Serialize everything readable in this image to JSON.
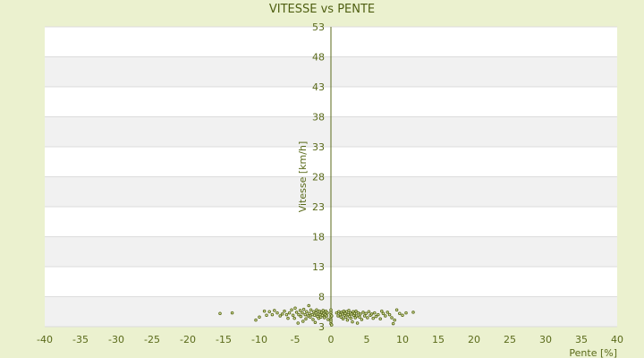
{
  "chart_data": {
    "type": "scatter",
    "title": "VITESSE vs PENTE",
    "xlabel": "Pente [%]",
    "ylabel": "Vitesse [km/h]",
    "xlim": [
      -40,
      40
    ],
    "ylim": [
      3,
      53
    ],
    "xticks": [
      -40,
      -35,
      -30,
      -25,
      -20,
      -15,
      -10,
      -5,
      0,
      5,
      10,
      15,
      20,
      25,
      30,
      35,
      40
    ],
    "yticks": [
      3,
      8,
      13,
      18,
      23,
      28,
      33,
      38,
      43,
      48,
      53
    ],
    "grid": "horizontal bands",
    "colors": {
      "page_bg": "#ebf1cf",
      "plot_bg": "#ffffff",
      "band_alt": "#f1f1f1",
      "grid": "#dcdcdc",
      "axis": "#5a6a1a",
      "point_fill": "#e8f0b0",
      "point_stroke": "#5a6a1a"
    },
    "series": [
      {
        "points": [
          [
            -15.5,
            5.2
          ],
          [
            -13.8,
            5.3
          ],
          [
            -10.5,
            4.1
          ],
          [
            -10.0,
            4.6
          ],
          [
            -9.3,
            5.6
          ],
          [
            -9.0,
            4.9
          ],
          [
            -8.6,
            5.5
          ],
          [
            -8.2,
            5.0
          ],
          [
            -7.9,
            5.7
          ],
          [
            -7.5,
            5.3
          ],
          [
            -7.1,
            4.8
          ],
          [
            -6.8,
            5.1
          ],
          [
            -6.5,
            5.6
          ],
          [
            -6.2,
            5.0
          ],
          [
            -6.0,
            4.4
          ],
          [
            -5.8,
            5.3
          ],
          [
            -5.5,
            5.8
          ],
          [
            -5.3,
            4.9
          ],
          [
            -5.1,
            4.4
          ],
          [
            -5.0,
            6.1
          ],
          [
            -4.8,
            5.4
          ],
          [
            -4.6,
            3.6
          ],
          [
            -4.5,
            5.0
          ],
          [
            -4.3,
            5.7
          ],
          [
            -4.2,
            4.7
          ],
          [
            -4.0,
            5.3
          ],
          [
            -3.9,
            3.9
          ],
          [
            -3.8,
            5.9
          ],
          [
            -3.6,
            5.0
          ],
          [
            -3.5,
            4.3
          ],
          [
            -3.4,
            5.5
          ],
          [
            -3.2,
            4.8
          ],
          [
            -3.1,
            6.5
          ],
          [
            -3.0,
            5.2
          ],
          [
            -2.9,
            4.6
          ],
          [
            -2.8,
            5.8
          ],
          [
            -2.6,
            5.0
          ],
          [
            -2.5,
            4.2
          ],
          [
            -2.4,
            5.5
          ],
          [
            -2.3,
            4.9
          ],
          [
            -2.2,
            3.7
          ],
          [
            -2.1,
            5.3
          ],
          [
            -2.0,
            5.8
          ],
          [
            -1.9,
            4.7
          ],
          [
            -1.8,
            5.1
          ],
          [
            -1.7,
            4.4
          ],
          [
            -1.6,
            5.6
          ],
          [
            -1.5,
            5.0
          ],
          [
            -1.4,
            4.6
          ],
          [
            -1.3,
            5.4
          ],
          [
            -1.2,
            4.9
          ],
          [
            -1.1,
            5.7
          ],
          [
            -1.0,
            5.2
          ],
          [
            -0.9,
            4.5
          ],
          [
            -0.8,
            5.0
          ],
          [
            -0.7,
            5.6
          ],
          [
            -0.6,
            4.8
          ],
          [
            -0.5,
            5.3
          ],
          [
            -0.4,
            4.2
          ],
          [
            0.0,
            5.4
          ],
          [
            0.0,
            5.0
          ],
          [
            0.0,
            4.6
          ],
          [
            0.0,
            4.2
          ],
          [
            0.0,
            3.9
          ],
          [
            0.0,
            3.5
          ],
          [
            0.0,
            5.8
          ],
          [
            0.1,
            4.8
          ],
          [
            0.1,
            3.3
          ],
          [
            0.8,
            5.3
          ],
          [
            1.0,
            4.8
          ],
          [
            1.1,
            5.5
          ],
          [
            1.3,
            5.0
          ],
          [
            1.4,
            4.6
          ],
          [
            1.5,
            5.4
          ],
          [
            1.6,
            5.1
          ],
          [
            1.7,
            4.3
          ],
          [
            1.8,
            5.6
          ],
          [
            1.9,
            4.9
          ],
          [
            2.0,
            5.2
          ],
          [
            2.1,
            4.6
          ],
          [
            2.2,
            5.5
          ],
          [
            2.3,
            4.1
          ],
          [
            2.4,
            5.0
          ],
          [
            2.5,
            5.7
          ],
          [
            2.6,
            4.7
          ],
          [
            2.7,
            5.3
          ],
          [
            2.8,
            4.4
          ],
          [
            2.9,
            5.1
          ],
          [
            3.0,
            3.8
          ],
          [
            3.1,
            5.5
          ],
          [
            3.2,
            4.9
          ],
          [
            3.3,
            5.2
          ],
          [
            3.4,
            4.5
          ],
          [
            3.5,
            5.6
          ],
          [
            3.6,
            4.8
          ],
          [
            3.7,
            3.6
          ],
          [
            3.8,
            5.3
          ],
          [
            4.0,
            4.6
          ],
          [
            4.1,
            5.1
          ],
          [
            4.3,
            4.2
          ],
          [
            4.5,
            5.4
          ],
          [
            4.7,
            4.8
          ],
          [
            4.9,
            5.2
          ],
          [
            5.1,
            4.5
          ],
          [
            5.3,
            5.5
          ],
          [
            5.5,
            4.9
          ],
          [
            5.7,
            5.1
          ],
          [
            5.9,
            4.4
          ],
          [
            6.1,
            5.3
          ],
          [
            6.3,
            4.7
          ],
          [
            6.6,
            5.0
          ],
          [
            6.9,
            4.3
          ],
          [
            7.1,
            5.6
          ],
          [
            7.3,
            5.2
          ],
          [
            7.6,
            4.8
          ],
          [
            7.9,
            5.4
          ],
          [
            8.2,
            5.0
          ],
          [
            8.5,
            4.5
          ],
          [
            8.7,
            3.5
          ],
          [
            8.9,
            4.1
          ],
          [
            9.2,
            5.8
          ],
          [
            9.6,
            5.2
          ],
          [
            10.0,
            4.9
          ],
          [
            10.5,
            5.3
          ],
          [
            11.5,
            5.4
          ]
        ]
      }
    ]
  }
}
